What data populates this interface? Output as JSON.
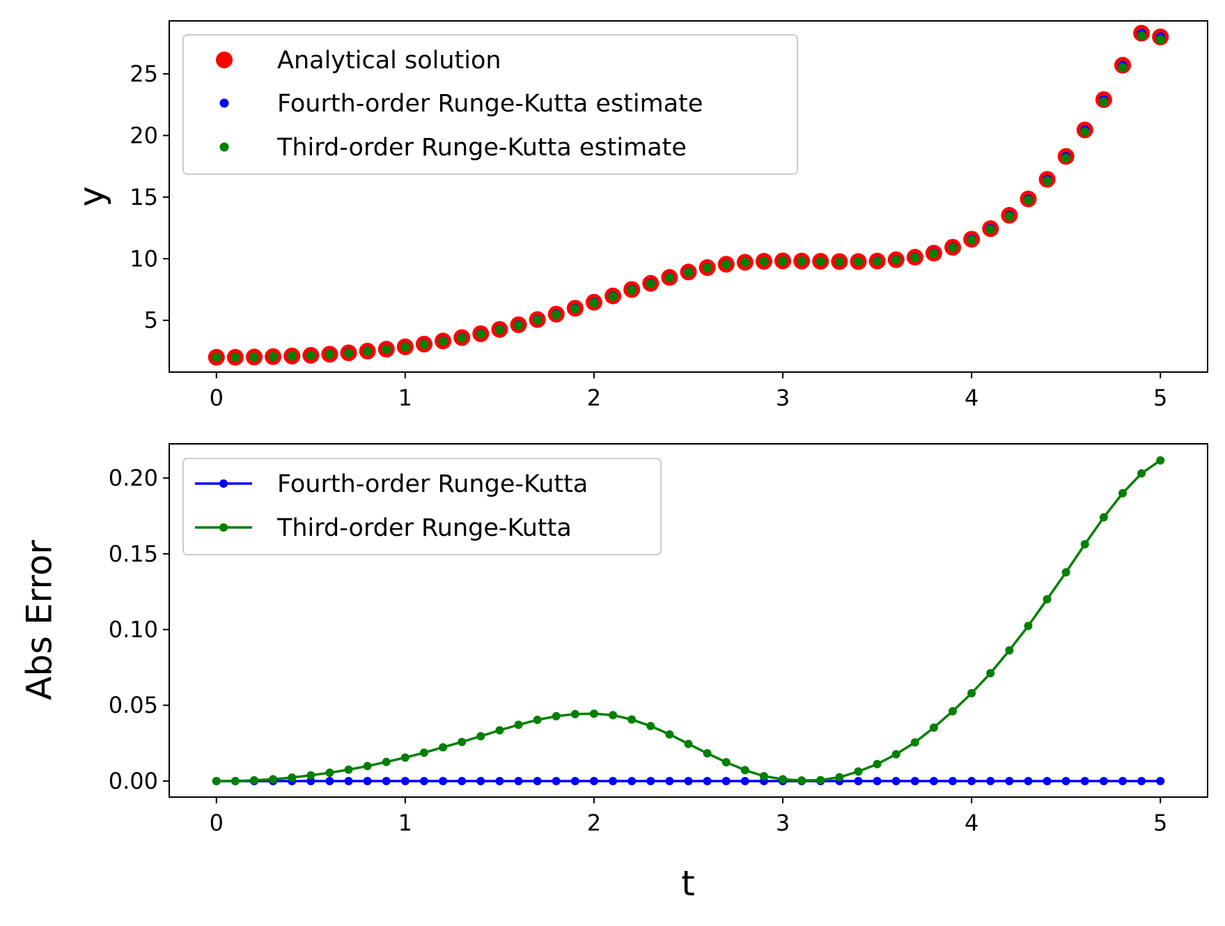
{
  "chart_data": [
    {
      "type": "scatter",
      "xlabel": "",
      "ylabel": "y",
      "xlim": [
        -0.25,
        5.25
      ],
      "ylim": [
        0.8,
        29.3
      ],
      "xticks": [
        "0",
        "1",
        "2",
        "3",
        "4",
        "5"
      ],
      "yticks": [
        "5",
        "10",
        "15",
        "20",
        "25"
      ],
      "grid": false,
      "legend_position": "upper-left",
      "x": [
        0,
        0.1,
        0.2,
        0.3,
        0.4,
        0.5,
        0.6,
        0.7,
        0.8,
        0.9,
        1.0,
        1.1,
        1.2,
        1.3,
        1.4,
        1.5,
        1.6,
        1.7,
        1.8,
        1.9,
        2.0,
        2.1,
        2.2,
        2.3,
        2.4,
        2.5,
        2.6,
        2.7,
        2.8,
        2.9,
        3.0,
        3.1,
        3.2,
        3.3,
        3.4,
        3.5,
        3.6,
        3.7,
        3.8,
        3.9,
        4.0,
        4.1,
        4.2,
        4.3,
        4.4,
        4.5,
        4.6,
        4.7,
        4.8,
        4.9,
        5.0
      ],
      "series": [
        {
          "name": "Analytical solution",
          "color": "#ff0000",
          "marker": "large-dot",
          "values": [
            2.0,
            2.0,
            2.02,
            2.05,
            2.1,
            2.16,
            2.25,
            2.36,
            2.5,
            2.66,
            2.85,
            3.07,
            3.32,
            3.6,
            3.91,
            4.26,
            4.64,
            5.06,
            5.5,
            5.98,
            6.47,
            6.98,
            7.5,
            8.0,
            8.48,
            8.92,
            9.28,
            9.55,
            9.71,
            9.79,
            9.82,
            9.81,
            9.79,
            9.77,
            9.77,
            9.81,
            9.92,
            10.12,
            10.45,
            10.93,
            11.58,
            12.44,
            13.52,
            14.85,
            16.44,
            18.3,
            20.45,
            22.91,
            25.7,
            28.3,
            28.0
          ]
        },
        {
          "name": "Fourth-order Runge-Kutta estimate",
          "color": "#0000ff",
          "marker": "small-dot",
          "values": [
            2.0,
            2.0,
            2.02,
            2.05,
            2.1,
            2.16,
            2.25,
            2.36,
            2.5,
            2.66,
            2.85,
            3.07,
            3.32,
            3.6,
            3.91,
            4.26,
            4.64,
            5.06,
            5.5,
            5.98,
            6.47,
            6.98,
            7.5,
            8.0,
            8.48,
            8.92,
            9.28,
            9.55,
            9.71,
            9.79,
            9.82,
            9.81,
            9.79,
            9.77,
            9.77,
            9.81,
            9.92,
            10.12,
            10.45,
            10.93,
            11.58,
            12.44,
            13.52,
            14.85,
            16.44,
            18.3,
            20.45,
            22.91,
            25.7,
            28.3,
            28.0
          ]
        },
        {
          "name": "Third-order Runge-Kutta estimate",
          "color": "#008000",
          "marker": "small-dot",
          "values": [
            2.0,
            2.0,
            2.02,
            2.05,
            2.1,
            2.16,
            2.24,
            2.35,
            2.49,
            2.65,
            2.83,
            3.05,
            3.3,
            3.57,
            3.88,
            4.23,
            4.6,
            5.02,
            5.46,
            5.94,
            6.42,
            6.94,
            7.46,
            7.96,
            8.45,
            8.89,
            9.26,
            9.53,
            9.7,
            9.79,
            9.82,
            9.81,
            9.79,
            9.77,
            9.76,
            9.8,
            9.9,
            10.09,
            10.41,
            10.88,
            11.52,
            12.37,
            13.43,
            14.75,
            16.32,
            18.16,
            20.29,
            22.74,
            25.51,
            28.1,
            27.8
          ]
        }
      ]
    },
    {
      "type": "line",
      "xlabel": "t",
      "ylabel": "Abs Error",
      "xlim": [
        -0.25,
        5.25
      ],
      "ylim": [
        -0.0106,
        0.2226
      ],
      "xticks": [
        "0",
        "1",
        "2",
        "3",
        "4",
        "5"
      ],
      "yticks": [
        "0.00",
        "0.05",
        "0.10",
        "0.15",
        "0.20"
      ],
      "grid": false,
      "legend_position": "upper-left",
      "x": [
        0,
        0.1,
        0.2,
        0.3,
        0.4,
        0.5,
        0.6,
        0.7,
        0.8,
        0.9,
        1.0,
        1.1,
        1.2,
        1.3,
        1.4,
        1.5,
        1.6,
        1.7,
        1.8,
        1.9,
        2.0,
        2.1,
        2.2,
        2.3,
        2.4,
        2.5,
        2.6,
        2.7,
        2.8,
        2.9,
        3.0,
        3.1,
        3.2,
        3.3,
        3.4,
        3.5,
        3.6,
        3.7,
        3.8,
        3.9,
        4.0,
        4.1,
        4.2,
        4.3,
        4.4,
        4.5,
        4.6,
        4.7,
        4.8,
        4.9,
        5.0
      ],
      "series": [
        {
          "name": "Fourth-order Runge-Kutta",
          "color": "#0000ff",
          "values": [
            0,
            0,
            0,
            0,
            0,
            0,
            0,
            0,
            0,
            0,
            0,
            0,
            0,
            0,
            0,
            0,
            0,
            0,
            0,
            0,
            0,
            0,
            0,
            0,
            0,
            0,
            0,
            0,
            0,
            0,
            0,
            0,
            0,
            0,
            0,
            0,
            0,
            0,
            0,
            0,
            0,
            0,
            0,
            0,
            0,
            0,
            0,
            0,
            0,
            0,
            0
          ]
        },
        {
          "name": "Third-order Runge-Kutta",
          "color": "#008000",
          "values": [
            0.0,
            0.0,
            0.0005,
            0.0012,
            0.0023,
            0.0038,
            0.0055,
            0.0075,
            0.0099,
            0.0126,
            0.0155,
            0.0187,
            0.0223,
            0.0258,
            0.0296,
            0.0335,
            0.0371,
            0.0404,
            0.0428,
            0.0442,
            0.0445,
            0.0435,
            0.0406,
            0.0363,
            0.0308,
            0.0245,
            0.0183,
            0.0124,
            0.0072,
            0.0032,
            0.0012,
            0.0004,
            0.0006,
            0.0025,
            0.0063,
            0.0112,
            0.0177,
            0.0255,
            0.0353,
            0.0461,
            0.058,
            0.0712,
            0.0863,
            0.1024,
            0.12,
            0.1378,
            0.1563,
            0.1741,
            0.19,
            0.2031,
            0.2117
          ]
        }
      ]
    }
  ]
}
